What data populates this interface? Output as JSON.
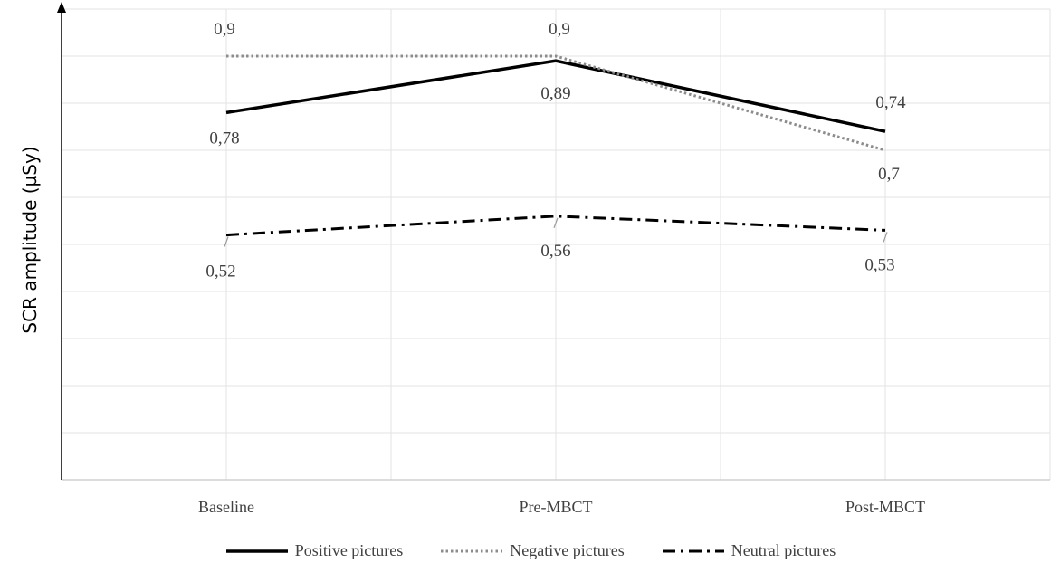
{
  "chart_data": {
    "type": "line",
    "title": "",
    "xlabel": "",
    "ylabel": "SCR amplitude (µSy)",
    "categories": [
      "Baseline",
      "Pre-MBCT",
      "Post-MBCT"
    ],
    "ylim": [
      0,
      1
    ],
    "grid": true,
    "legend_position": "bottom",
    "series": [
      {
        "name": "Positive pictures",
        "values": [
          0.78,
          0.89,
          0.74
        ],
        "labels": [
          "0,78",
          "0,89",
          "0,74"
        ],
        "color": "#000000",
        "style": "solid"
      },
      {
        "name": "Negative pictures",
        "values": [
          0.9,
          0.9,
          0.7
        ],
        "labels": [
          "0,9",
          "0,9",
          "0,7"
        ],
        "color": "#8c8c8c",
        "style": "dotted"
      },
      {
        "name": "Neutral pictures",
        "values": [
          0.52,
          0.56,
          0.53
        ],
        "labels": [
          "0,52",
          "0,56",
          "0,53"
        ],
        "color": "#000000",
        "style": "dashdot"
      }
    ]
  }
}
